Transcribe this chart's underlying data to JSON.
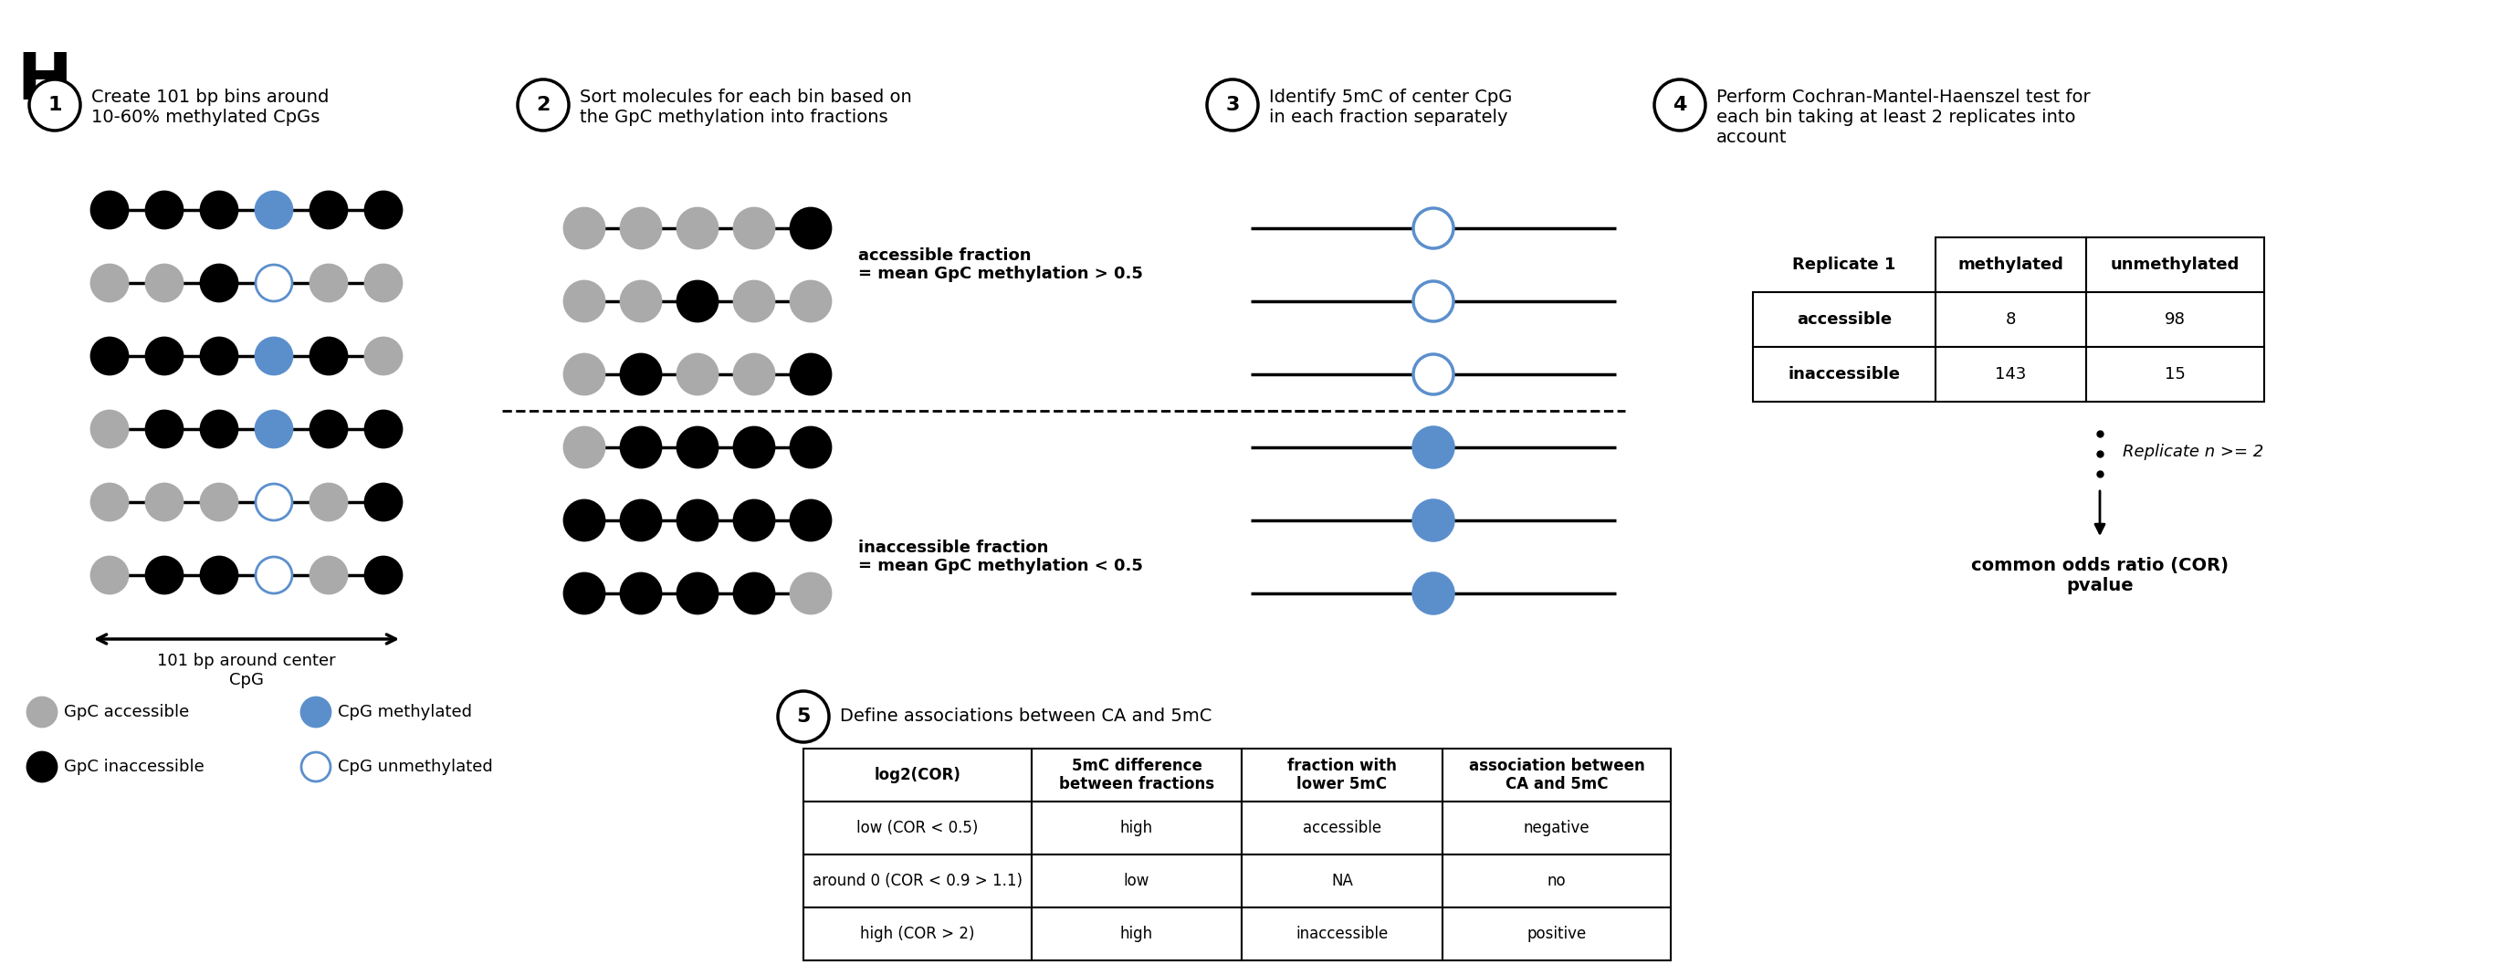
{
  "bg_color": "#ffffff",
  "step1_title": "Create 101 bp bins around\n10-60% methylated CpGs",
  "step2_title": "Sort molecules for each bin based on\nthe GpC methylation into fractions",
  "step3_title": "Identify 5mC of center CpG\nin each fraction separately",
  "step4_title": "Perform Cochran-Mantel-Haenszel test for\neach bin taking at least 2 replicates into\naccount",
  "step5_title": "Define associations between CA and 5mC",
  "accessible_label": "accessible fraction\n= mean GpC methylation > 0.5",
  "inaccessible_label": "inaccessible fraction\n= mean GpC methylation < 0.5",
  "replicate_label": "Replicate n >= 2",
  "cor_label": "common odds ratio (COR)\npvalue",
  "table1_headers": [
    "Replicate 1",
    "methylated",
    "unmethylated"
  ],
  "table1_rows": [
    [
      "accessible",
      "8",
      "98"
    ],
    [
      "inaccessible",
      "143",
      "15"
    ]
  ],
  "table2_headers": [
    "log2(COR)",
    "5mC difference\nbetween fractions",
    "fraction with\nlower 5mC",
    "association between\nCA and 5mC"
  ],
  "table2_rows": [
    [
      "low (COR < 0.5)",
      "high",
      "accessible",
      "negative"
    ],
    [
      "around 0 (COR < 0.9 > 1.1)",
      "low",
      "NA",
      "no"
    ],
    [
      "high (COR > 2)",
      "high",
      "inaccessible",
      "positive"
    ]
  ],
  "gray_color": "#aaaaaa",
  "black_color": "#000000",
  "blue_color": "#5b8fcc",
  "step1_row1": [
    "black",
    "black",
    "black",
    "blue_filled",
    "black",
    "black"
  ],
  "step1_row2": [
    "gray",
    "gray",
    "black",
    "blue_open",
    "gray",
    "gray"
  ],
  "step1_row3": [
    "black",
    "black",
    "black",
    "blue_filled",
    "black",
    "gray"
  ],
  "step1_row4": [
    "gray",
    "black",
    "black",
    "blue_filled",
    "black",
    "black"
  ],
  "step1_row5": [
    "gray",
    "gray",
    "gray",
    "blue_open",
    "gray",
    "black"
  ],
  "step1_row6": [
    "gray",
    "black",
    "black",
    "blue_open",
    "gray",
    "black"
  ],
  "step2_acc_row1": [
    "gray",
    "gray",
    "gray",
    "gray",
    "black"
  ],
  "step2_acc_row2": [
    "gray",
    "gray",
    "black",
    "gray",
    "gray"
  ],
  "step2_acc_row3": [
    "gray",
    "black",
    "gray",
    "gray",
    "black"
  ],
  "step2_inacc_row1": [
    "gray",
    "black",
    "black",
    "black",
    "black"
  ],
  "step2_inacc_row2": [
    "black",
    "black",
    "black",
    "black",
    "black"
  ],
  "step2_inacc_row3": [
    "black",
    "black",
    "black",
    "black",
    "gray"
  ]
}
